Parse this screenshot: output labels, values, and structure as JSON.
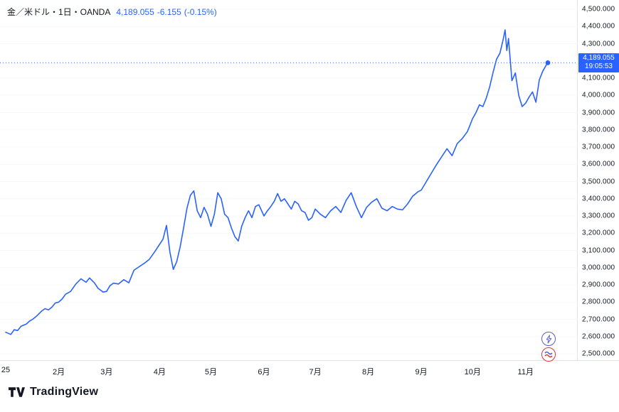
{
  "header": {
    "symbol_title": "金／米ドル・1日・OANDA",
    "price": "4,189.055",
    "change": "-6.155",
    "change_pct": "(-0.15%)"
  },
  "price_label": {
    "value": "4,189.055",
    "time": "19:05:53"
  },
  "footer": {
    "logo_text": "TradingView"
  },
  "side_buttons": {
    "quick_trade_icon": "lightning-bolt-icon",
    "broker_icon": "broker-logo-icon"
  },
  "colors": {
    "accent": "#2962ff",
    "line": "#2962ff",
    "text": "#131722",
    "axis_border": "#e0e3eb",
    "grid": "#f5f8fb",
    "badge_bg": "#2962ff",
    "badge_text": "#ffffff",
    "quick_trade": "#5b5bd6",
    "broker_ring": "#e0342f"
  },
  "chart_data": {
    "type": "line",
    "title": "金／米ドル・1日・OANDA",
    "xlabel": "",
    "ylabel": "",
    "ylim": [
      2500,
      4500
    ],
    "x_max_day": 317,
    "grid": "faint",
    "legend_position": "top-left",
    "price_ticks": [
      {
        "label": "4,500.000",
        "value": 4500
      },
      {
        "label": "4,400.000",
        "value": 4400
      },
      {
        "label": "4,300.000",
        "value": 4300
      },
      {
        "label": "4,200.000",
        "value": 4200
      },
      {
        "label": "4,100.000",
        "value": 4100
      },
      {
        "label": "4,000.000",
        "value": 4000
      },
      {
        "label": "3,900.000",
        "value": 3900
      },
      {
        "label": "3,800.000",
        "value": 3800
      },
      {
        "label": "3,700.000",
        "value": 3700
      },
      {
        "label": "3,600.000",
        "value": 3600
      },
      {
        "label": "3,500.000",
        "value": 3500
      },
      {
        "label": "3,400.000",
        "value": 3400
      },
      {
        "label": "3,300.000",
        "value": 3300
      },
      {
        "label": "3,200.000",
        "value": 3200
      },
      {
        "label": "3,100.000",
        "value": 3100
      },
      {
        "label": "3,000.000",
        "value": 3000
      },
      {
        "label": "2,900.000",
        "value": 2900
      },
      {
        "label": "2,800.000",
        "value": 2800
      },
      {
        "label": "2,700.000",
        "value": 2700
      },
      {
        "label": "2,600.000",
        "value": 2600
      },
      {
        "label": "2,500.000",
        "value": 2500
      }
    ],
    "x_ticks": [
      {
        "label": "25",
        "day": 0
      },
      {
        "label": "2月",
        "day": 31
      },
      {
        "label": "3月",
        "day": 59
      },
      {
        "label": "4月",
        "day": 90
      },
      {
        "label": "5月",
        "day": 120
      },
      {
        "label": "6月",
        "day": 151
      },
      {
        "label": "7月",
        "day": 181
      },
      {
        "label": "8月",
        "day": 212
      },
      {
        "label": "9月",
        "day": 243
      },
      {
        "label": "10月",
        "day": 273
      },
      {
        "label": "11月",
        "day": 304
      }
    ],
    "series": [
      {
        "name": "金／米ドル OANDA",
        "color": "#2962ff",
        "points": [
          [
            0,
            2625
          ],
          [
            3,
            2612
          ],
          [
            5,
            2640
          ],
          [
            7,
            2635
          ],
          [
            9,
            2660
          ],
          [
            12,
            2672
          ],
          [
            14,
            2690
          ],
          [
            16,
            2702
          ],
          [
            18,
            2718
          ],
          [
            21,
            2748
          ],
          [
            23,
            2762
          ],
          [
            25,
            2755
          ],
          [
            27,
            2770
          ],
          [
            29,
            2795
          ],
          [
            31,
            2800
          ],
          [
            33,
            2818
          ],
          [
            35,
            2845
          ],
          [
            38,
            2862
          ],
          [
            41,
            2905
          ],
          [
            44,
            2935
          ],
          [
            47,
            2915
          ],
          [
            49,
            2940
          ],
          [
            52,
            2910
          ],
          [
            54,
            2880
          ],
          [
            57,
            2858
          ],
          [
            59,
            2862
          ],
          [
            61,
            2895
          ],
          [
            63,
            2910
          ],
          [
            66,
            2905
          ],
          [
            69,
            2930
          ],
          [
            72,
            2912
          ],
          [
            75,
            2985
          ],
          [
            78,
            3005
          ],
          [
            81,
            3025
          ],
          [
            84,
            3048
          ],
          [
            87,
            3090
          ],
          [
            90,
            3135
          ],
          [
            92,
            3165
          ],
          [
            94,
            3245
          ],
          [
            96,
            3090
          ],
          [
            98,
            2990
          ],
          [
            100,
            3035
          ],
          [
            102,
            3120
          ],
          [
            104,
            3230
          ],
          [
            106,
            3345
          ],
          [
            108,
            3420
          ],
          [
            110,
            3445
          ],
          [
            112,
            3330
          ],
          [
            114,
            3290
          ],
          [
            116,
            3350
          ],
          [
            118,
            3310
          ],
          [
            120,
            3240
          ],
          [
            122,
            3310
          ],
          [
            124,
            3435
          ],
          [
            126,
            3400
          ],
          [
            128,
            3310
          ],
          [
            130,
            3290
          ],
          [
            132,
            3230
          ],
          [
            134,
            3180
          ],
          [
            136,
            3155
          ],
          [
            138,
            3240
          ],
          [
            140,
            3290
          ],
          [
            142,
            3330
          ],
          [
            144,
            3290
          ],
          [
            146,
            3355
          ],
          [
            148,
            3365
          ],
          [
            151,
            3300
          ],
          [
            153,
            3330
          ],
          [
            155,
            3355
          ],
          [
            157,
            3385
          ],
          [
            159,
            3430
          ],
          [
            161,
            3385
          ],
          [
            163,
            3400
          ],
          [
            165,
            3370
          ],
          [
            167,
            3340
          ],
          [
            169,
            3385
          ],
          [
            171,
            3370
          ],
          [
            173,
            3330
          ],
          [
            175,
            3320
          ],
          [
            177,
            3275
          ],
          [
            179,
            3290
          ],
          [
            181,
            3340
          ],
          [
            184,
            3310
          ],
          [
            187,
            3290
          ],
          [
            190,
            3330
          ],
          [
            193,
            3355
          ],
          [
            196,
            3320
          ],
          [
            199,
            3390
          ],
          [
            202,
            3435
          ],
          [
            205,
            3355
          ],
          [
            208,
            3290
          ],
          [
            211,
            3350
          ],
          [
            214,
            3380
          ],
          [
            217,
            3400
          ],
          [
            220,
            3345
          ],
          [
            223,
            3330
          ],
          [
            226,
            3355
          ],
          [
            229,
            3340
          ],
          [
            232,
            3335
          ],
          [
            235,
            3370
          ],
          [
            238,
            3415
          ],
          [
            241,
            3440
          ],
          [
            243,
            3450
          ],
          [
            246,
            3500
          ],
          [
            249,
            3550
          ],
          [
            252,
            3600
          ],
          [
            255,
            3645
          ],
          [
            258,
            3690
          ],
          [
            261,
            3650
          ],
          [
            264,
            3720
          ],
          [
            267,
            3750
          ],
          [
            270,
            3790
          ],
          [
            273,
            3865
          ],
          [
            275,
            3900
          ],
          [
            277,
            3945
          ],
          [
            279,
            3935
          ],
          [
            281,
            3985
          ],
          [
            283,
            4050
          ],
          [
            285,
            4135
          ],
          [
            287,
            4210
          ],
          [
            289,
            4245
          ],
          [
            291,
            4330
          ],
          [
            292,
            4380
          ],
          [
            293,
            4260
          ],
          [
            294,
            4330
          ],
          [
            296,
            4085
          ],
          [
            298,
            4130
          ],
          [
            300,
            4000
          ],
          [
            302,
            3935
          ],
          [
            304,
            3955
          ],
          [
            306,
            3990
          ],
          [
            308,
            4020
          ],
          [
            310,
            3960
          ],
          [
            312,
            4090
          ],
          [
            314,
            4140
          ],
          [
            316,
            4175
          ],
          [
            317,
            4189.055
          ]
        ]
      }
    ],
    "last": {
      "day": 317,
      "price": 4189.055,
      "change": -6.155,
      "change_pct": -0.15,
      "time": "19:05:53"
    }
  }
}
